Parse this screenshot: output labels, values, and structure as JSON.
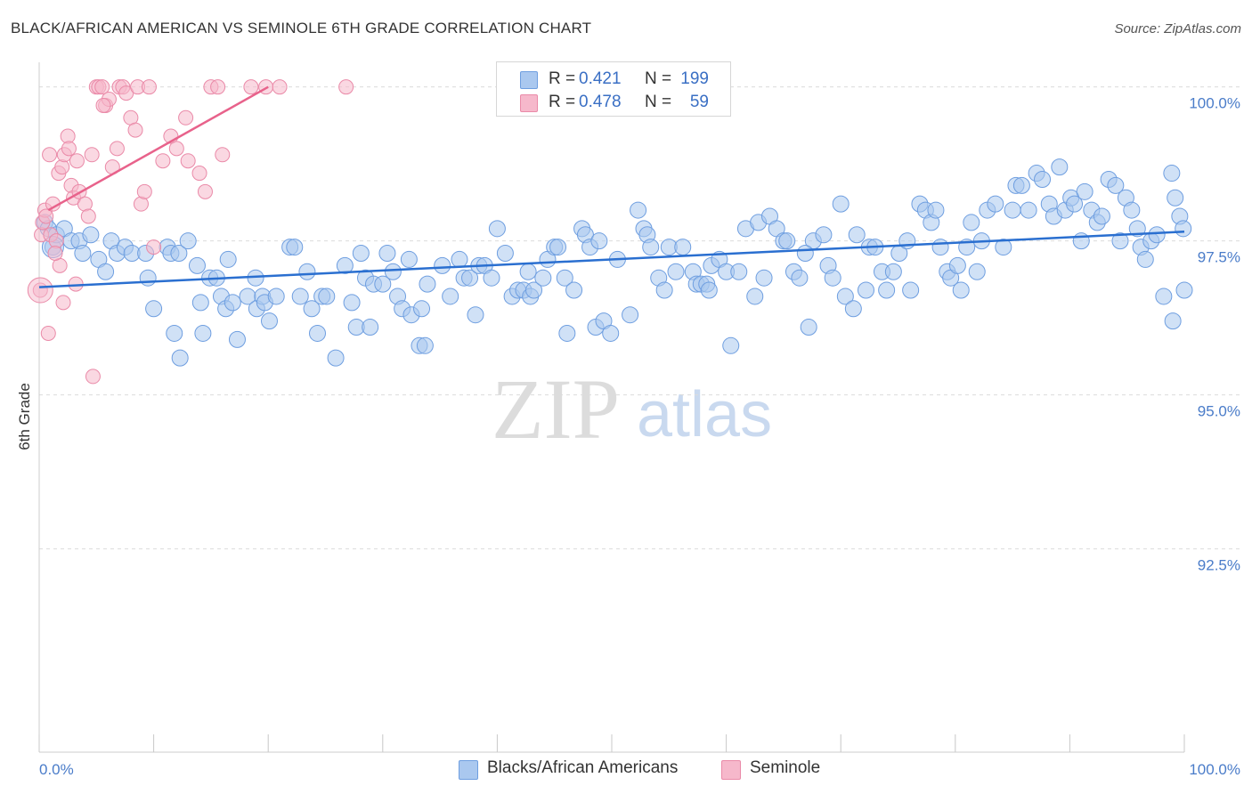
{
  "title": "BLACK/AFRICAN AMERICAN VS SEMINOLE 6TH GRADE CORRELATION CHART",
  "source": "Source: ZipAtlas.com",
  "watermark": {
    "zip": "ZIP",
    "atlas": "atlas"
  },
  "legend_top": [
    {
      "r_label": "R =",
      "r_value": "0.421",
      "n_label": "N =",
      "n_value": "199",
      "color": "#aac8ef"
    },
    {
      "r_label": "R =",
      "r_value": "0.478",
      "n_label": "N =",
      "n_value": "59",
      "color": "#f6b8cb"
    }
  ],
  "legend_bottom": [
    {
      "label": "Blacks/African Americans",
      "color": "#aac8ef"
    },
    {
      "label": "Seminole",
      "color": "#f6b8cb"
    }
  ],
  "colors": {
    "blue_fill": "#aac8ef",
    "blue_stroke": "#6e9ee0",
    "blue_line": "#2a6fd0",
    "pink_fill": "#f6b8cb",
    "pink_stroke": "#ea8aa8",
    "pink_line": "#e8628b",
    "tick_text": "#4a7cc9",
    "grid": "#dcdcdc"
  },
  "chart_data": {
    "type": "scatter",
    "title": "BLACK/AFRICAN AMERICAN VS SEMINOLE 6TH GRADE CORRELATION CHART",
    "xlabel": "",
    "ylabel": "6th Grade",
    "xlim": [
      0,
      100
    ],
    "ylim": [
      89.2,
      100.4
    ],
    "x_tick_labels": [
      "0.0%",
      "100.0%"
    ],
    "y_tick_labels": [
      "100.0%",
      "97.5%",
      "95.0%",
      "92.5%"
    ],
    "y_ticks": [
      100.0,
      97.5,
      95.0,
      92.5
    ],
    "legend_position": "top-center",
    "grid": "horizontal dashed",
    "series": [
      {
        "name": "Blacks/African Americans",
        "r": 0.421,
        "n": 199,
        "trend": {
          "x": [
            0,
            100
          ],
          "y": [
            96.75,
            97.65
          ]
        },
        "points": [
          [
            0.5,
            97.8
          ],
          [
            0.8,
            97.7
          ],
          [
            1.2,
            97.4
          ],
          [
            1.5,
            97.6
          ],
          [
            2.2,
            97.7
          ],
          [
            2.8,
            97.5
          ],
          [
            3.5,
            97.5
          ],
          [
            3.8,
            97.3
          ],
          [
            4.5,
            97.6
          ],
          [
            5.2,
            97.2
          ],
          [
            5.8,
            97.0
          ],
          [
            6.3,
            97.5
          ],
          [
            6.8,
            97.3
          ],
          [
            7.5,
            97.4
          ],
          [
            8.1,
            97.3
          ],
          [
            9.3,
            97.3
          ],
          [
            9.5,
            96.9
          ],
          [
            10.0,
            96.4
          ],
          [
            11.2,
            97.4
          ],
          [
            11.5,
            97.3
          ],
          [
            11.8,
            96.0
          ],
          [
            12.2,
            97.3
          ],
          [
            12.3,
            95.6
          ],
          [
            13.0,
            97.5
          ],
          [
            13.8,
            97.1
          ],
          [
            14.1,
            96.5
          ],
          [
            14.3,
            96.0
          ],
          [
            14.9,
            96.9
          ],
          [
            15.5,
            96.9
          ],
          [
            15.9,
            96.6
          ],
          [
            16.3,
            96.4
          ],
          [
            16.5,
            97.2
          ],
          [
            16.9,
            96.5
          ],
          [
            17.3,
            95.9
          ],
          [
            18.2,
            96.6
          ],
          [
            18.9,
            96.9
          ],
          [
            19.0,
            96.4
          ],
          [
            19.5,
            96.6
          ],
          [
            19.7,
            96.5
          ],
          [
            20.1,
            96.2
          ],
          [
            20.7,
            96.6
          ],
          [
            21.9,
            97.4
          ],
          [
            22.3,
            97.4
          ],
          [
            22.8,
            96.6
          ],
          [
            23.4,
            97.0
          ],
          [
            23.8,
            96.4
          ],
          [
            24.3,
            96.0
          ],
          [
            24.7,
            96.6
          ],
          [
            25.1,
            96.6
          ],
          [
            25.9,
            95.6
          ],
          [
            26.7,
            97.1
          ],
          [
            27.3,
            96.5
          ],
          [
            27.7,
            96.1
          ],
          [
            28.1,
            97.3
          ],
          [
            28.5,
            96.9
          ],
          [
            28.9,
            96.1
          ],
          [
            29.2,
            96.8
          ],
          [
            30.0,
            96.8
          ],
          [
            30.4,
            97.3
          ],
          [
            30.9,
            97.0
          ],
          [
            31.3,
            96.6
          ],
          [
            31.7,
            96.4
          ],
          [
            32.3,
            97.2
          ],
          [
            32.5,
            96.3
          ],
          [
            33.2,
            95.8
          ],
          [
            33.4,
            96.4
          ],
          [
            33.7,
            95.8
          ],
          [
            33.9,
            96.8
          ],
          [
            35.2,
            97.1
          ],
          [
            35.9,
            96.6
          ],
          [
            36.7,
            97.2
          ],
          [
            37.1,
            96.9
          ],
          [
            37.6,
            96.9
          ],
          [
            38.1,
            96.3
          ],
          [
            38.4,
            97.1
          ],
          [
            38.9,
            97.1
          ],
          [
            39.5,
            96.9
          ],
          [
            40.0,
            97.7
          ],
          [
            40.7,
            97.3
          ],
          [
            41.3,
            96.6
          ],
          [
            41.8,
            96.7
          ],
          [
            42.3,
            96.7
          ],
          [
            42.7,
            97.0
          ],
          [
            42.9,
            96.6
          ],
          [
            43.2,
            96.7
          ],
          [
            44.0,
            96.9
          ],
          [
            44.4,
            97.2
          ],
          [
            45.0,
            97.4
          ],
          [
            45.3,
            97.4
          ],
          [
            45.9,
            96.9
          ],
          [
            46.1,
            96.0
          ],
          [
            46.7,
            96.7
          ],
          [
            47.4,
            97.7
          ],
          [
            47.7,
            97.6
          ],
          [
            48.1,
            97.4
          ],
          [
            48.6,
            96.1
          ],
          [
            48.9,
            97.5
          ],
          [
            49.3,
            96.2
          ],
          [
            49.9,
            96.0
          ],
          [
            50.5,
            97.2
          ],
          [
            51.6,
            96.3
          ],
          [
            52.3,
            98.0
          ],
          [
            52.8,
            97.7
          ],
          [
            53.1,
            97.6
          ],
          [
            53.4,
            97.4
          ],
          [
            54.1,
            96.9
          ],
          [
            54.6,
            96.7
          ],
          [
            55.0,
            97.4
          ],
          [
            55.6,
            97.0
          ],
          [
            56.2,
            97.4
          ],
          [
            57.1,
            97.0
          ],
          [
            57.4,
            96.8
          ],
          [
            57.8,
            96.8
          ],
          [
            58.3,
            96.8
          ],
          [
            58.7,
            97.1
          ],
          [
            59.4,
            97.2
          ],
          [
            60.0,
            97.0
          ],
          [
            60.4,
            95.8
          ],
          [
            61.1,
            97.0
          ],
          [
            61.7,
            97.7
          ],
          [
            62.5,
            96.6
          ],
          [
            62.8,
            97.8
          ],
          [
            63.3,
            96.9
          ],
          [
            63.8,
            97.9
          ],
          [
            64.4,
            97.7
          ],
          [
            65.0,
            97.5
          ],
          [
            65.3,
            97.5
          ],
          [
            65.9,
            97.0
          ],
          [
            66.4,
            96.9
          ],
          [
            67.2,
            96.1
          ],
          [
            67.6,
            97.5
          ],
          [
            68.5,
            97.6
          ],
          [
            68.9,
            97.1
          ],
          [
            69.3,
            96.9
          ],
          [
            70.0,
            98.1
          ],
          [
            70.4,
            96.6
          ],
          [
            71.1,
            96.4
          ],
          [
            71.4,
            97.6
          ],
          [
            72.2,
            96.7
          ],
          [
            72.5,
            97.4
          ],
          [
            73.0,
            97.4
          ],
          [
            73.6,
            97.0
          ],
          [
            74.0,
            96.7
          ],
          [
            74.6,
            97.0
          ],
          [
            75.1,
            97.3
          ],
          [
            75.8,
            97.5
          ],
          [
            76.1,
            96.7
          ],
          [
            76.9,
            98.1
          ],
          [
            77.4,
            98.0
          ],
          [
            77.9,
            97.8
          ],
          [
            78.3,
            98.0
          ],
          [
            78.7,
            97.4
          ],
          [
            79.3,
            97.0
          ],
          [
            79.6,
            96.9
          ],
          [
            80.2,
            97.1
          ],
          [
            80.5,
            96.7
          ],
          [
            81.0,
            97.4
          ],
          [
            81.4,
            97.8
          ],
          [
            81.9,
            97.0
          ],
          [
            82.3,
            97.5
          ],
          [
            82.8,
            98.0
          ],
          [
            83.5,
            98.1
          ],
          [
            84.2,
            97.4
          ],
          [
            85.0,
            98.0
          ],
          [
            85.3,
            98.4
          ],
          [
            85.8,
            98.4
          ],
          [
            86.4,
            98.0
          ],
          [
            87.1,
            98.6
          ],
          [
            87.6,
            98.5
          ],
          [
            88.2,
            98.1
          ],
          [
            88.6,
            97.9
          ],
          [
            89.1,
            98.7
          ],
          [
            89.6,
            98.0
          ],
          [
            90.1,
            98.2
          ],
          [
            90.4,
            98.1
          ],
          [
            91.0,
            97.5
          ],
          [
            91.3,
            98.3
          ],
          [
            91.9,
            98.0
          ],
          [
            92.4,
            97.8
          ],
          [
            92.8,
            97.9
          ],
          [
            93.4,
            98.5
          ],
          [
            94.0,
            98.4
          ],
          [
            94.4,
            97.5
          ],
          [
            94.9,
            98.2
          ],
          [
            95.4,
            98.0
          ],
          [
            95.9,
            97.7
          ],
          [
            96.2,
            97.4
          ],
          [
            96.6,
            97.2
          ],
          [
            97.1,
            97.5
          ],
          [
            97.6,
            97.6
          ],
          [
            98.2,
            96.6
          ],
          [
            98.9,
            98.6
          ],
          [
            99.2,
            98.2
          ],
          [
            99.6,
            97.9
          ],
          [
            99.9,
            97.7
          ],
          [
            100.0,
            96.7
          ],
          [
            99.0,
            96.2
          ],
          [
            58.5,
            96.7
          ],
          [
            66.9,
            97.3
          ]
        ]
      },
      {
        "name": "Seminole",
        "r": 0.478,
        "n": 59,
        "trend": {
          "x": [
            0.8,
            20.0
          ],
          "y": [
            98.0,
            100.0
          ]
        },
        "points": [
          [
            0.1,
            96.7
          ],
          [
            0.2,
            97.6
          ],
          [
            0.3,
            97.8
          ],
          [
            0.5,
            98.0
          ],
          [
            0.6,
            97.9
          ],
          [
            0.8,
            96.0
          ],
          [
            1.0,
            97.6
          ],
          [
            1.2,
            98.1
          ],
          [
            1.5,
            97.5
          ],
          [
            1.7,
            98.6
          ],
          [
            2.0,
            98.7
          ],
          [
            2.2,
            98.9
          ],
          [
            2.5,
            99.2
          ],
          [
            2.6,
            99.0
          ],
          [
            2.8,
            98.4
          ],
          [
            3.0,
            98.2
          ],
          [
            3.3,
            98.8
          ],
          [
            3.5,
            98.3
          ],
          [
            4.0,
            98.1
          ],
          [
            4.3,
            97.9
          ],
          [
            4.6,
            98.9
          ],
          [
            5.0,
            100.0
          ],
          [
            5.2,
            100.0
          ],
          [
            5.5,
            100.0
          ],
          [
            5.8,
            99.7
          ],
          [
            6.1,
            99.8
          ],
          [
            6.4,
            98.7
          ],
          [
            6.8,
            99.0
          ],
          [
            7.0,
            100.0
          ],
          [
            7.3,
            100.0
          ],
          [
            7.6,
            99.9
          ],
          [
            8.0,
            99.5
          ],
          [
            8.4,
            99.3
          ],
          [
            8.6,
            100.0
          ],
          [
            8.9,
            98.1
          ],
          [
            9.2,
            98.3
          ],
          [
            10.0,
            97.4
          ],
          [
            10.8,
            98.8
          ],
          [
            11.5,
            99.2
          ],
          [
            12.0,
            99.0
          ],
          [
            12.8,
            99.5
          ],
          [
            13.0,
            98.8
          ],
          [
            14.0,
            98.6
          ],
          [
            14.5,
            98.3
          ],
          [
            15.0,
            100.0
          ],
          [
            15.6,
            100.0
          ],
          [
            16.0,
            98.9
          ],
          [
            18.5,
            100.0
          ],
          [
            19.8,
            100.0
          ],
          [
            21.0,
            100.0
          ],
          [
            26.8,
            100.0
          ],
          [
            1.8,
            97.1
          ],
          [
            3.2,
            96.8
          ],
          [
            2.1,
            96.5
          ],
          [
            4.7,
            95.3
          ],
          [
            0.9,
            98.9
          ],
          [
            1.4,
            97.3
          ],
          [
            5.6,
            99.7
          ],
          [
            9.6,
            100.0
          ]
        ]
      }
    ]
  }
}
